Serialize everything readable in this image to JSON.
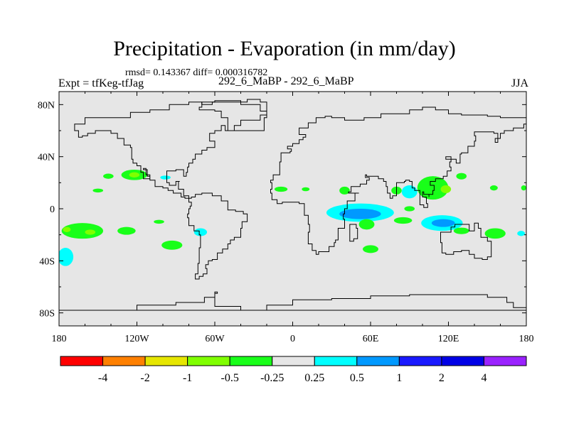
{
  "chart_data": {
    "type": "heatmap",
    "title": "Precipitation - Evaporation (in mm/day)",
    "stats_text": "rmsd= 0.143367  diff= 0.000316782",
    "left_label": "Expt = tfKeg-tfJag",
    "center_label": "292_6_MaBP - 292_6_MaBP",
    "right_label": "JJA",
    "x_axis": {
      "range": [
        -180,
        180
      ],
      "ticks": [
        -180,
        -120,
        -60,
        0,
        60,
        120,
        180
      ],
      "tick_labels": [
        "180",
        "120W",
        "60W",
        "0",
        "60E",
        "120E",
        "180"
      ]
    },
    "y_axis": {
      "range": [
        -90,
        90
      ],
      "ticks": [
        -80,
        -40,
        0,
        40,
        80
      ],
      "tick_labels": [
        "80S",
        "40S",
        "0",
        "40N",
        "80N"
      ]
    },
    "background": "#e6e6e6",
    "colorbar": {
      "labels": [
        "-4",
        "-2",
        "-1",
        "-0.5",
        "-0.25",
        "0.25",
        "0.5",
        "1",
        "2",
        "4"
      ],
      "colors": [
        "#ff0000",
        "#ff8000",
        "#e6e600",
        "#80ff00",
        "#19ff19",
        "#e6e6e6",
        "#00ffff",
        "#0099ff",
        "#1a1aff",
        "#0000e6",
        "#9a22ff"
      ]
    },
    "regions": [
      {
        "lon": -122,
        "lat": 26,
        "rx": 10,
        "ry": 4,
        "value": -0.35
      },
      {
        "lon": -122,
        "lat": 26,
        "rx": 4,
        "ry": 2,
        "value": -0.7
      },
      {
        "lon": -142,
        "lat": 25,
        "rx": 4,
        "ry": 2,
        "value": -0.35
      },
      {
        "lon": -98,
        "lat": 24,
        "rx": 4,
        "ry": 1.5,
        "value": 0.35
      },
      {
        "lon": -150,
        "lat": 14,
        "rx": 4,
        "ry": 1.5,
        "value": -0.35
      },
      {
        "lon": -162,
        "lat": -17,
        "rx": 16,
        "ry": 6,
        "value": -0.35
      },
      {
        "lon": -156,
        "lat": -18,
        "rx": 4,
        "ry": 2,
        "value": -0.7
      },
      {
        "lon": -174,
        "lat": -16,
        "rx": 3,
        "ry": 2,
        "value": -0.7
      },
      {
        "lon": -128,
        "lat": -17,
        "rx": 7,
        "ry": 3,
        "value": -0.35
      },
      {
        "lon": -93,
        "lat": -28,
        "rx": 8,
        "ry": 3.5,
        "value": -0.35
      },
      {
        "lon": -71,
        "lat": -18,
        "rx": 5,
        "ry": 3,
        "value": 0.35
      },
      {
        "lon": -103,
        "lat": -10,
        "rx": 4,
        "ry": 1.5,
        "value": -0.35
      },
      {
        "lon": -175,
        "lat": -37,
        "rx": 6,
        "ry": 7,
        "value": 0.35
      },
      {
        "lon": -9,
        "lat": 15,
        "rx": 5,
        "ry": 2,
        "value": -0.35
      },
      {
        "lon": 10,
        "lat": 15,
        "rx": 3,
        "ry": 1.5,
        "value": -0.35
      },
      {
        "lon": 40,
        "lat": 14,
        "rx": 4,
        "ry": 3,
        "value": -0.35
      },
      {
        "lon": 52,
        "lat": -3,
        "rx": 26,
        "ry": 7,
        "value": 0.35
      },
      {
        "lon": 52,
        "lat": -4,
        "rx": 16,
        "ry": 4,
        "value": 0.75
      },
      {
        "lon": 57,
        "lat": -12,
        "rx": 6,
        "ry": 4,
        "value": -0.35
      },
      {
        "lon": 85,
        "lat": -9,
        "rx": 7,
        "ry": 2.5,
        "value": -0.35
      },
      {
        "lon": 115,
        "lat": -11,
        "rx": 16,
        "ry": 6,
        "value": 0.35
      },
      {
        "lon": 116,
        "lat": -11,
        "rx": 9,
        "ry": 3,
        "value": 0.75
      },
      {
        "lon": 130,
        "lat": -17,
        "rx": 6,
        "ry": 2.5,
        "value": -0.35
      },
      {
        "lon": 156,
        "lat": -19,
        "rx": 8,
        "ry": 4,
        "value": -0.35
      },
      {
        "lon": 108,
        "lat": 16,
        "rx": 12,
        "ry": 9,
        "value": -0.35
      },
      {
        "lon": 118,
        "lat": 15,
        "rx": 4,
        "ry": 3,
        "value": -0.7
      },
      {
        "lon": 130,
        "lat": 25,
        "rx": 4,
        "ry": 2.5,
        "value": -0.35
      },
      {
        "lon": 90,
        "lat": 13,
        "rx": 6,
        "ry": 5,
        "value": 0.35
      },
      {
        "lon": 80,
        "lat": 14,
        "rx": 4,
        "ry": 3,
        "value": -0.35
      },
      {
        "lon": 90,
        "lat": 0,
        "rx": 4,
        "ry": 2,
        "value": -0.35
      },
      {
        "lon": 155,
        "lat": 16,
        "rx": 3,
        "ry": 2,
        "value": -0.35
      },
      {
        "lon": 178,
        "lat": 16,
        "rx": 2,
        "ry": 2,
        "value": -0.35
      },
      {
        "lon": 60,
        "lat": -31,
        "rx": 6,
        "ry": 3,
        "value": -0.35
      },
      {
        "lon": 176,
        "lat": -19,
        "rx": 3,
        "ry": 2,
        "value": 0.35
      }
    ],
    "coastlines": [
      [
        [
          -168,
          65
        ],
        [
          -160,
          70
        ],
        [
          -140,
          70
        ],
        [
          -125,
          74
        ],
        [
          -110,
          76
        ],
        [
          -95,
          80
        ],
        [
          -80,
          82
        ],
        [
          -70,
          80
        ],
        [
          -62,
          82
        ],
        [
          -50,
          82
        ],
        [
          -35,
          84
        ],
        [
          -25,
          82
        ],
        [
          -20,
          78
        ],
        [
          -20,
          72
        ],
        [
          -25,
          68
        ],
        [
          -40,
          64
        ],
        [
          -45,
          60
        ],
        [
          -52,
          64
        ],
        [
          -55,
          60
        ],
        [
          -60,
          58
        ],
        [
          -64,
          52
        ],
        [
          -60,
          47
        ],
        [
          -66,
          45
        ],
        [
          -70,
          42
        ],
        [
          -75,
          38
        ],
        [
          -77,
          35
        ],
        [
          -80,
          32
        ],
        [
          -81,
          28
        ],
        [
          -82,
          25
        ],
        [
          -84,
          30
        ],
        [
          -90,
          29
        ],
        [
          -97,
          26
        ],
        [
          -97,
          20
        ],
        [
          -95,
          18
        ],
        [
          -90,
          21
        ],
        [
          -87,
          21
        ],
        [
          -88,
          15
        ],
        [
          -84,
          10
        ],
        [
          -80,
          8
        ],
        [
          -78,
          9
        ],
        [
          -75,
          11
        ],
        [
          -70,
          12
        ],
        [
          -62,
          10
        ],
        [
          -55,
          6
        ],
        [
          -50,
          2
        ],
        [
          -50,
          -1
        ],
        [
          -44,
          -2
        ],
        [
          -38,
          -4
        ],
        [
          -35,
          -6
        ],
        [
          -35,
          -10
        ],
        [
          -39,
          -15
        ],
        [
          -40,
          -22
        ],
        [
          -45,
          -24
        ],
        [
          -48,
          -27
        ],
        [
          -50,
          -31
        ],
        [
          -54,
          -34
        ],
        [
          -58,
          -36
        ],
        [
          -58,
          -39
        ],
        [
          -62,
          -40
        ],
        [
          -65,
          -43
        ],
        [
          -67,
          -46
        ],
        [
          -66,
          -50
        ],
        [
          -69,
          -52
        ],
        [
          -72,
          -54
        ],
        [
          -75,
          -50
        ],
        [
          -73,
          -42
        ],
        [
          -72,
          -30
        ],
        [
          -71,
          -20
        ],
        [
          -72,
          -17
        ],
        [
          -76,
          -13
        ],
        [
          -80,
          -7
        ],
        [
          -81,
          -4
        ],
        [
          -80,
          0
        ],
        [
          -79,
          2
        ],
        [
          -78,
          5
        ],
        [
          -80,
          8
        ],
        [
          -83,
          9
        ],
        [
          -86,
          12
        ],
        [
          -92,
          14
        ],
        [
          -96,
          16
        ],
        [
          -100,
          17
        ],
        [
          -106,
          22
        ],
        [
          -110,
          26
        ],
        [
          -113,
          31
        ],
        [
          -115,
          30
        ],
        [
          -112,
          25
        ],
        [
          -110,
          23
        ],
        [
          -115,
          28
        ],
        [
          -117,
          33
        ],
        [
          -120,
          35
        ],
        [
          -123,
          38
        ],
        [
          -124,
          42
        ],
        [
          -124,
          47
        ],
        [
          -125,
          49
        ],
        [
          -130,
          54
        ],
        [
          -135,
          58
        ],
        [
          -140,
          60
        ],
        [
          -148,
          60
        ],
        [
          -152,
          58
        ],
        [
          -158,
          56
        ],
        [
          -162,
          55
        ],
        [
          -165,
          60
        ],
        [
          -168,
          65
        ]
      ],
      [
        [
          -10,
          36
        ],
        [
          -9,
          39
        ],
        [
          -9,
          43
        ],
        [
          -2,
          44
        ],
        [
          -1,
          46
        ],
        [
          -4,
          48
        ],
        [
          0,
          50
        ],
        [
          5,
          53
        ],
        [
          8,
          55
        ],
        [
          10,
          57
        ],
        [
          5,
          60
        ],
        [
          5,
          62
        ],
        [
          12,
          66
        ],
        [
          18,
          70
        ],
        [
          25,
          71
        ],
        [
          30,
          70
        ],
        [
          40,
          68
        ],
        [
          45,
          68
        ],
        [
          55,
          70
        ],
        [
          60,
          70
        ],
        [
          68,
          73
        ],
        [
          80,
          73
        ],
        [
          90,
          76
        ],
        [
          100,
          78
        ],
        [
          110,
          76
        ],
        [
          120,
          73
        ],
        [
          130,
          72
        ],
        [
          140,
          72
        ],
        [
          150,
          71
        ],
        [
          160,
          70
        ],
        [
          170,
          70
        ],
        [
          180,
          68
        ],
        [
          180,
          65
        ],
        [
          178,
          62
        ],
        [
          170,
          60
        ],
        [
          163,
          58
        ],
        [
          160,
          54
        ],
        [
          156,
          51
        ],
        [
          158,
          58
        ],
        [
          155,
          59
        ],
        [
          145,
          59
        ],
        [
          140,
          56
        ],
        [
          141,
          52
        ],
        [
          140,
          48
        ],
        [
          135,
          43
        ],
        [
          130,
          42
        ],
        [
          129,
          35
        ],
        [
          126,
          35
        ],
        [
          126,
          38
        ],
        [
          122,
          40
        ],
        [
          118,
          38
        ],
        [
          122,
          36
        ],
        [
          121,
          32
        ],
        [
          122,
          29
        ],
        [
          119,
          25
        ],
        [
          116,
          23
        ],
        [
          110,
          21
        ],
        [
          108,
          21
        ],
        [
          106,
          18
        ],
        [
          109,
          14
        ],
        [
          108,
          11
        ],
        [
          105,
          9
        ],
        [
          105,
          11
        ],
        [
          101,
          13
        ],
        [
          100,
          9
        ],
        [
          103,
          4
        ],
        [
          104,
          1
        ],
        [
          101,
          3
        ],
        [
          98,
          8
        ],
        [
          98,
          14
        ],
        [
          94,
          16
        ],
        [
          92,
          21
        ],
        [
          90,
          22
        ],
        [
          87,
          21
        ],
        [
          86,
          20
        ],
        [
          80,
          16
        ],
        [
          80,
          10
        ],
        [
          77,
          8
        ],
        [
          75,
          12
        ],
        [
          73,
          17
        ],
        [
          72,
          21
        ],
        [
          70,
          23
        ],
        [
          66,
          25
        ],
        [
          61,
          25
        ],
        [
          57,
          26
        ],
        [
          56,
          24
        ],
        [
          59,
          22
        ],
        [
          57,
          19
        ],
        [
          52,
          17
        ],
        [
          45,
          13
        ],
        [
          43,
          12
        ],
        [
          51,
          12
        ],
        [
          48,
          6
        ],
        [
          42,
          0
        ],
        [
          40,
          -4
        ],
        [
          39,
          -8
        ],
        [
          40,
          -15
        ],
        [
          35,
          -20
        ],
        [
          35,
          -24
        ],
        [
          33,
          -26
        ],
        [
          32,
          -29
        ],
        [
          28,
          -33
        ],
        [
          20,
          -35
        ],
        [
          18,
          -32
        ],
        [
          15,
          -27
        ],
        [
          12,
          -18
        ],
        [
          13,
          -12
        ],
        [
          12,
          -5
        ],
        [
          9,
          -1
        ],
        [
          9,
          4
        ],
        [
          5,
          5
        ],
        [
          0,
          5
        ],
        [
          -5,
          5
        ],
        [
          -8,
          4
        ],
        [
          -12,
          7
        ],
        [
          -16,
          12
        ],
        [
          -17,
          15
        ],
        [
          -16,
          20
        ],
        [
          -17,
          22
        ],
        [
          -15,
          26
        ],
        [
          -10,
          30
        ],
        [
          -10,
          36
        ]
      ],
      [
        [
          44,
          -25
        ],
        [
          47,
          -23
        ],
        [
          50,
          -15
        ],
        [
          49,
          -12
        ],
        [
          44,
          -17
        ],
        [
          44,
          -25
        ]
      ],
      [
        [
          114,
          -22
        ],
        [
          114,
          -26
        ],
        [
          115,
          -34
        ],
        [
          118,
          -35
        ],
        [
          124,
          -33
        ],
        [
          130,
          -32
        ],
        [
          136,
          -35
        ],
        [
          138,
          -35
        ],
        [
          140,
          -38
        ],
        [
          146,
          -39
        ],
        [
          150,
          -37
        ],
        [
          153,
          -30
        ],
        [
          153,
          -25
        ],
        [
          150,
          -22
        ],
        [
          145,
          -15
        ],
        [
          143,
          -11
        ],
        [
          140,
          -17
        ],
        [
          136,
          -12
        ],
        [
          130,
          -12
        ],
        [
          125,
          -14
        ],
        [
          122,
          -18
        ],
        [
          114,
          -22
        ]
      ],
      [
        [
          -50,
          60
        ],
        [
          -44,
          60
        ],
        [
          -22,
          70
        ],
        [
          -20,
          75
        ],
        [
          -25,
          80
        ],
        [
          -40,
          83
        ],
        [
          -60,
          82
        ],
        [
          -70,
          78
        ],
        [
          -72,
          76
        ],
        [
          -60,
          75
        ],
        [
          -55,
          70
        ],
        [
          -50,
          65
        ],
        [
          -50,
          60
        ]
      ],
      [
        [
          -180,
          -78
        ],
        [
          -150,
          -78
        ],
        [
          -120,
          -74
        ],
        [
          -90,
          -72
        ],
        [
          -68,
          -68
        ],
        [
          -60,
          -64
        ],
        [
          -58,
          -65
        ],
        [
          -60,
          -70
        ],
        [
          -60,
          -75
        ],
        [
          -40,
          -78
        ],
        [
          -20,
          -74
        ],
        [
          0,
          -70
        ],
        [
          30,
          -69
        ],
        [
          60,
          -67
        ],
        [
          90,
          -66
        ],
        [
          120,
          -66
        ],
        [
          150,
          -68
        ],
        [
          165,
          -72
        ],
        [
          170,
          -76
        ],
        [
          180,
          -78
        ]
      ]
    ]
  }
}
